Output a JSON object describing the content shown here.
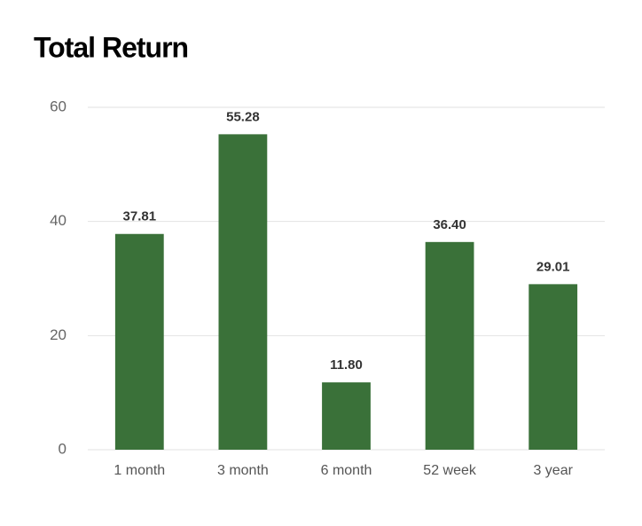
{
  "chart_data": {
    "type": "bar",
    "title": "Total Return",
    "categories": [
      "1 month",
      "3 month",
      "6 month",
      "52 week",
      "3 year"
    ],
    "values": [
      37.81,
      55.28,
      11.8,
      36.4,
      29.01
    ],
    "value_labels": [
      "37.81",
      "55.28",
      "11.80",
      "36.40",
      "29.01"
    ],
    "color": "#3a7139",
    "ylim": [
      0,
      60
    ],
    "yticks": [
      0,
      20,
      40,
      60
    ],
    "grid": true
  }
}
